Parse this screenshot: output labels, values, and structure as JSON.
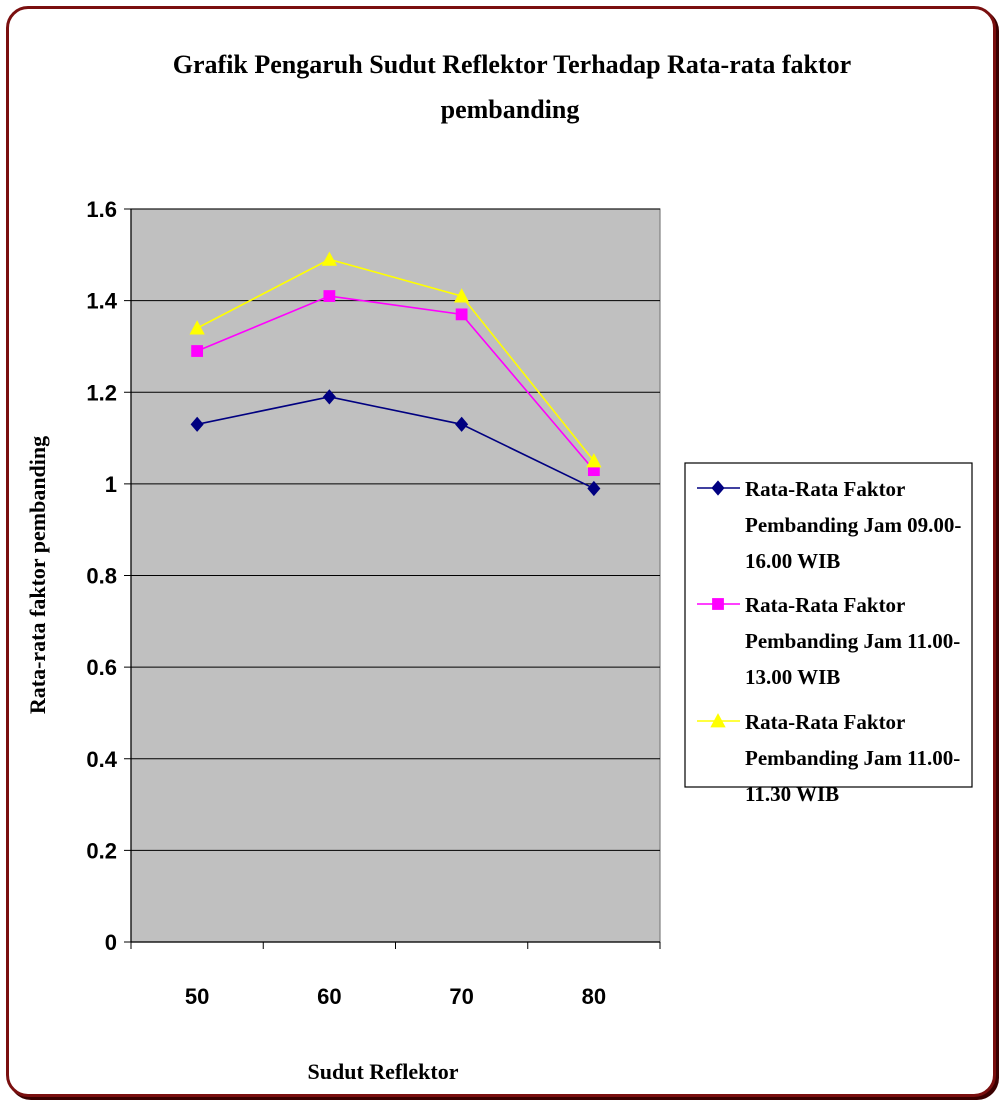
{
  "chart_data": {
    "type": "line",
    "title": "Grafik Pengaruh Sudut Reflektor Terhadap Rata-rata faktor pembanding",
    "title_lines": [
      "Grafik Pengaruh Sudut Reflektor Terhadap Rata-rata faktor",
      "pembanding"
    ],
    "xlabel": "Sudut Reflektor",
    "ylabel": "Rata-rata faktor pembanding",
    "categories": [
      "50",
      "60",
      "70",
      "80"
    ],
    "ylim": [
      0,
      1.6
    ],
    "yticks": [
      "0",
      "0.2",
      "0.4",
      "0.6",
      "0.8",
      "1",
      "1.2",
      "1.4",
      "1.6"
    ],
    "grid": true,
    "plot_background": "#c0c0c0",
    "legend_position": "right",
    "series": [
      {
        "name": "Rata-Rata Faktor Pembanding Jam 09.00-16.00 WIB",
        "legend_lines": [
          "Rata-Rata Faktor",
          "Pembanding Jam 09.00-",
          "16.00 WIB"
        ],
        "color": "#000080",
        "marker": "diamond",
        "values": [
          1.13,
          1.19,
          1.13,
          0.99
        ]
      },
      {
        "name": "Rata-Rata Faktor Pembanding Jam 11.00-13.00 WIB",
        "legend_lines": [
          "Rata-Rata Faktor",
          "Pembanding Jam 11.00-",
          "13.00 WIB"
        ],
        "color": "#ff00ff",
        "marker": "square",
        "values": [
          1.29,
          1.41,
          1.37,
          1.03
        ]
      },
      {
        "name": "Rata-Rata Faktor Pembanding Jam 11.00-11.30 WIB",
        "legend_lines": [
          "Rata-Rata Faktor",
          "Pembanding Jam 11.00-",
          "11.30 WIB"
        ],
        "color": "#ffff00",
        "marker": "triangle",
        "values": [
          1.34,
          1.49,
          1.41,
          1.05
        ]
      }
    ]
  }
}
